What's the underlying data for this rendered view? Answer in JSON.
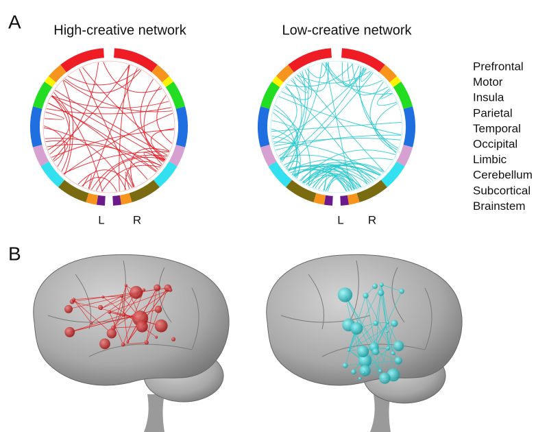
{
  "panel_a": {
    "label": "A",
    "networks": [
      {
        "title": "High-creative network",
        "left": "L",
        "right": "R"
      },
      {
        "title": "Low-creative network",
        "left": "L",
        "right": "R"
      }
    ],
    "legend": [
      {
        "label": "Prefrontal",
        "color": "#ee1c25"
      },
      {
        "label": "Motor",
        "color": "#f7941d"
      },
      {
        "label": "Insula",
        "color": "#fff200"
      },
      {
        "label": "Parietal",
        "color": "#22dd22"
      },
      {
        "label": "Temporal",
        "color": "#1f6fe0"
      },
      {
        "label": "Occipital",
        "color": "#d6a0d0"
      },
      {
        "label": "Limbic",
        "color": "#33e0f0"
      },
      {
        "label": "Cerebellum",
        "color": "#7a6a10"
      },
      {
        "label": "Subcortical",
        "color": "#f7941d"
      },
      {
        "label": "Brainstem",
        "color": "#6a1a8a"
      }
    ]
  },
  "panel_b": {
    "label": "B"
  }
}
